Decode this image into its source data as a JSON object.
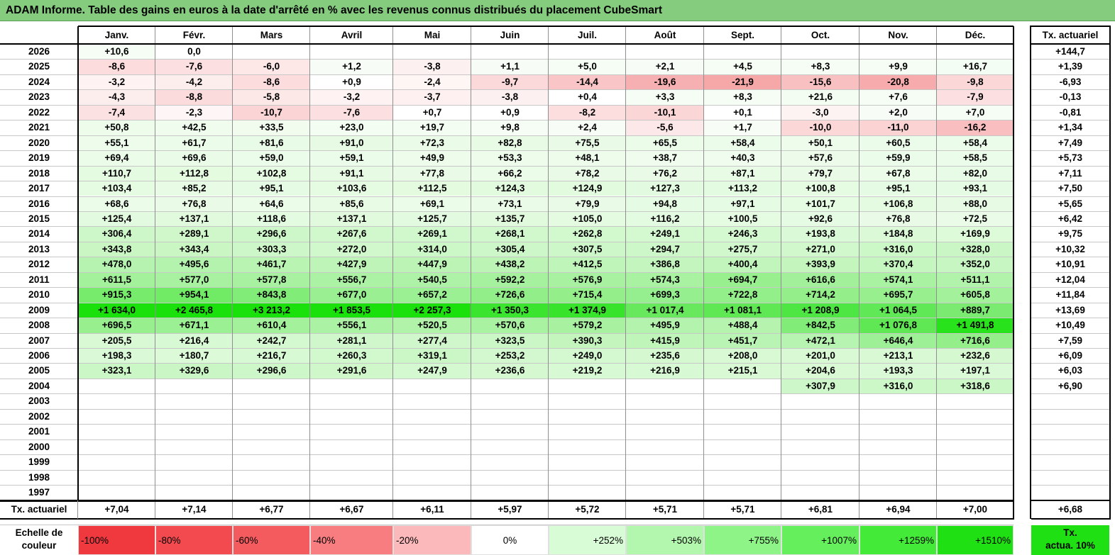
{
  "title": "ADAM Informe. Table des gains en euros à la date d'arrêté en % avec les revenus connus distribués du placement CubeSmart",
  "months": [
    "Janv.",
    "Févr.",
    "Mars",
    "Avril",
    "Mai",
    "Juin",
    "Juil.",
    "Août",
    "Sept.",
    "Oct.",
    "Nov.",
    "Déc."
  ],
  "annual_header": "Tx. actuariel",
  "rows": [
    {
      "year": "2026",
      "values": [
        "+10,6",
        "0,0",
        "",
        "",
        "",
        "",
        "",
        "",
        "",
        "",
        "",
        ""
      ],
      "rate": "+144,7"
    },
    {
      "year": "2025",
      "values": [
        "-8,6",
        "-7,6",
        "-6,0",
        "+1,2",
        "-3,8",
        "+1,1",
        "+5,0",
        "+2,1",
        "+4,5",
        "+8,3",
        "+9,9",
        "+16,7"
      ],
      "rate": "+1,39"
    },
    {
      "year": "2024",
      "values": [
        "-3,2",
        "-4,2",
        "-8,6",
        "+0,9",
        "-2,4",
        "-9,7",
        "-14,4",
        "-19,6",
        "-21,9",
        "-15,6",
        "-20,8",
        "-9,8"
      ],
      "rate": "-6,93"
    },
    {
      "year": "2023",
      "values": [
        "-4,3",
        "-8,8",
        "-5,8",
        "-3,2",
        "-3,7",
        "-3,8",
        "+0,4",
        "+3,3",
        "+8,3",
        "+21,6",
        "+7,6",
        "-7,9"
      ],
      "rate": "-0,13"
    },
    {
      "year": "2022",
      "values": [
        "-7,4",
        "-2,3",
        "-10,7",
        "-7,6",
        "+0,7",
        "+0,9",
        "-8,2",
        "-10,1",
        "+0,1",
        "-3,0",
        "+2,0",
        "+7,0"
      ],
      "rate": "-0,81"
    },
    {
      "year": "2021",
      "values": [
        "+50,8",
        "+42,5",
        "+33,5",
        "+23,0",
        "+19,7",
        "+9,8",
        "+2,4",
        "-5,6",
        "+1,7",
        "-10,0",
        "-11,0",
        "-16,2"
      ],
      "rate": "+1,34"
    },
    {
      "year": "2020",
      "values": [
        "+55,1",
        "+61,7",
        "+81,6",
        "+91,0",
        "+72,3",
        "+82,8",
        "+75,5",
        "+65,5",
        "+58,4",
        "+50,1",
        "+60,5",
        "+58,4"
      ],
      "rate": "+7,49"
    },
    {
      "year": "2019",
      "values": [
        "+69,4",
        "+69,6",
        "+59,0",
        "+59,1",
        "+49,9",
        "+53,3",
        "+48,1",
        "+38,7",
        "+40,3",
        "+57,6",
        "+59,9",
        "+58,5"
      ],
      "rate": "+5,73"
    },
    {
      "year": "2018",
      "values": [
        "+110,7",
        "+112,8",
        "+102,8",
        "+91,1",
        "+77,8",
        "+66,2",
        "+78,2",
        "+76,2",
        "+87,1",
        "+79,7",
        "+67,8",
        "+82,0"
      ],
      "rate": "+7,11"
    },
    {
      "year": "2017",
      "values": [
        "+103,4",
        "+85,2",
        "+95,1",
        "+103,6",
        "+112,5",
        "+124,3",
        "+124,9",
        "+127,3",
        "+113,2",
        "+100,8",
        "+95,1",
        "+93,1"
      ],
      "rate": "+7,50"
    },
    {
      "year": "2016",
      "values": [
        "+68,6",
        "+76,8",
        "+64,6",
        "+85,6",
        "+69,1",
        "+73,1",
        "+79,9",
        "+94,8",
        "+97,1",
        "+101,7",
        "+106,8",
        "+88,0"
      ],
      "rate": "+5,65"
    },
    {
      "year": "2015",
      "values": [
        "+125,4",
        "+137,1",
        "+118,6",
        "+137,1",
        "+125,7",
        "+135,7",
        "+105,0",
        "+116,2",
        "+100,5",
        "+92,6",
        "+76,8",
        "+72,5"
      ],
      "rate": "+6,42"
    },
    {
      "year": "2014",
      "values": [
        "+306,4",
        "+289,1",
        "+296,6",
        "+267,6",
        "+269,1",
        "+268,1",
        "+262,8",
        "+249,1",
        "+246,3",
        "+193,8",
        "+184,8",
        "+169,9"
      ],
      "rate": "+9,75"
    },
    {
      "year": "2013",
      "values": [
        "+343,8",
        "+343,4",
        "+303,3",
        "+272,0",
        "+314,0",
        "+305,4",
        "+307,5",
        "+294,7",
        "+275,7",
        "+271,0",
        "+316,0",
        "+328,0"
      ],
      "rate": "+10,32"
    },
    {
      "year": "2012",
      "values": [
        "+478,0",
        "+495,6",
        "+461,7",
        "+427,9",
        "+447,9",
        "+438,2",
        "+412,5",
        "+386,8",
        "+400,4",
        "+393,9",
        "+370,4",
        "+352,0"
      ],
      "rate": "+10,91"
    },
    {
      "year": "2011",
      "values": [
        "+611,5",
        "+577,0",
        "+577,8",
        "+556,7",
        "+540,5",
        "+592,2",
        "+576,9",
        "+574,3",
        "+694,7",
        "+616,6",
        "+574,1",
        "+511,1"
      ],
      "rate": "+12,04"
    },
    {
      "year": "2010",
      "values": [
        "+915,3",
        "+954,1",
        "+843,8",
        "+677,0",
        "+657,2",
        "+726,6",
        "+715,4",
        "+699,3",
        "+722,8",
        "+714,2",
        "+695,7",
        "+605,8"
      ],
      "rate": "+11,84"
    },
    {
      "year": "2009",
      "values": [
        "+1 634,0",
        "+2 465,8",
        "+3 213,2",
        "+1 853,5",
        "+2 257,3",
        "+1 350,3",
        "+1 374,9",
        "+1 017,4",
        "+1 081,1",
        "+1 208,9",
        "+1 064,5",
        "+889,7"
      ],
      "rate": "+13,69"
    },
    {
      "year": "2008",
      "values": [
        "+696,5",
        "+671,1",
        "+610,4",
        "+556,1",
        "+520,5",
        "+570,6",
        "+579,2",
        "+495,9",
        "+488,4",
        "+842,5",
        "+1 076,8",
        "+1 491,8"
      ],
      "rate": "+10,49"
    },
    {
      "year": "2007",
      "values": [
        "+205,5",
        "+216,4",
        "+242,7",
        "+281,1",
        "+277,4",
        "+323,5",
        "+390,3",
        "+415,9",
        "+451,7",
        "+472,1",
        "+646,4",
        "+716,6"
      ],
      "rate": "+7,59"
    },
    {
      "year": "2006",
      "values": [
        "+198,3",
        "+180,7",
        "+216,7",
        "+260,3",
        "+319,1",
        "+253,2",
        "+249,0",
        "+235,6",
        "+208,0",
        "+201,0",
        "+213,1",
        "+232,6"
      ],
      "rate": "+6,09"
    },
    {
      "year": "2005",
      "values": [
        "+323,1",
        "+329,6",
        "+296,6",
        "+291,6",
        "+247,9",
        "+236,6",
        "+219,2",
        "+216,9",
        "+215,1",
        "+204,6",
        "+193,3",
        "+197,1"
      ],
      "rate": "+6,03"
    },
    {
      "year": "2004",
      "values": [
        "",
        "",
        "",
        "",
        "",
        "",
        "",
        "",
        "",
        "+307,9",
        "+316,0",
        "+318,6"
      ],
      "rate": "+6,90"
    },
    {
      "year": "2003",
      "values": [
        "",
        "",
        "",
        "",
        "",
        "",
        "",
        "",
        "",
        "",
        "",
        ""
      ],
      "rate": ""
    },
    {
      "year": "2002",
      "values": [
        "",
        "",
        "",
        "",
        "",
        "",
        "",
        "",
        "",
        "",
        "",
        ""
      ],
      "rate": ""
    },
    {
      "year": "2001",
      "values": [
        "",
        "",
        "",
        "",
        "",
        "",
        "",
        "",
        "",
        "",
        "",
        ""
      ],
      "rate": ""
    },
    {
      "year": "2000",
      "values": [
        "",
        "",
        "",
        "",
        "",
        "",
        "",
        "",
        "",
        "",
        "",
        ""
      ],
      "rate": ""
    },
    {
      "year": "1999",
      "values": [
        "",
        "",
        "",
        "",
        "",
        "",
        "",
        "",
        "",
        "",
        "",
        ""
      ],
      "rate": ""
    },
    {
      "year": "1998",
      "values": [
        "",
        "",
        "",
        "",
        "",
        "",
        "",
        "",
        "",
        "",
        "",
        ""
      ],
      "rate": ""
    },
    {
      "year": "1997",
      "values": [
        "",
        "",
        "",
        "",
        "",
        "",
        "",
        "",
        "",
        "",
        "",
        ""
      ],
      "rate": ""
    }
  ],
  "summary": {
    "label": "Tx. actuariel",
    "values": [
      "+7,04",
      "+7,14",
      "+6,77",
      "+6,67",
      "+6,11",
      "+5,97",
      "+5,72",
      "+5,71",
      "+5,71",
      "+6,81",
      "+6,94",
      "+7,00"
    ],
    "overall": "+6,68"
  },
  "legend": {
    "label_line1": "Echelle de",
    "label_line2": "couleur",
    "items": [
      {
        "text": "-100%",
        "color": "#f0393f",
        "align": "left"
      },
      {
        "text": "-80%",
        "color": "#f24a4f",
        "align": "left"
      },
      {
        "text": "-60%",
        "color": "#f45b5f",
        "align": "left"
      },
      {
        "text": "-40%",
        "color": "#f77d80",
        "align": "left"
      },
      {
        "text": "-20%",
        "color": "#fbb9bb",
        "align": "left"
      },
      {
        "text": "0%",
        "color": "#ffffff",
        "align": "center"
      },
      {
        "text": "+252%",
        "color": "#d8fcd5",
        "align": "right"
      },
      {
        "text": "+503%",
        "color": "#b3f7ae",
        "align": "right"
      },
      {
        "text": "+755%",
        "color": "#8ef487",
        "align": "right"
      },
      {
        "text": "+1007%",
        "color": "#66ef5d",
        "align": "right"
      },
      {
        "text": "+1259%",
        "color": "#43ea38",
        "align": "right"
      },
      {
        "text": "+1510%",
        "color": "#1fe013",
        "align": "right"
      }
    ],
    "rate_line1": "Tx.",
    "rate_line2": "actua. 10%",
    "rate_color": "#1fe013"
  }
}
